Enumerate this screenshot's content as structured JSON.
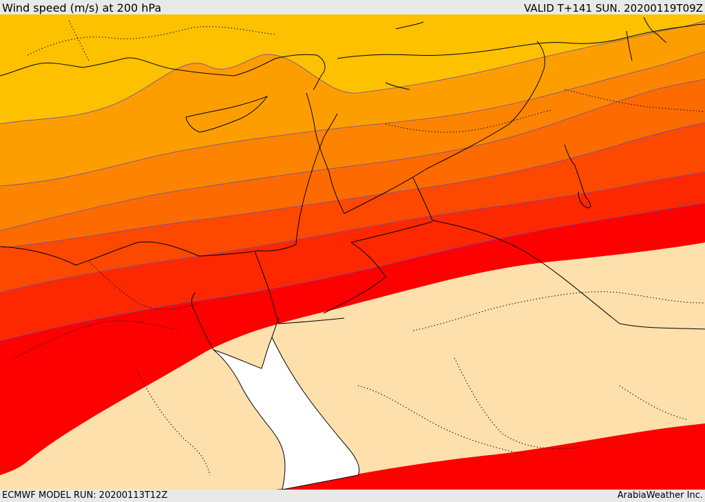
{
  "header": {
    "title": "Wind speed (m/s) at 200 hPa",
    "valid": "VALID T+141 SUN. 20200119T09Z"
  },
  "footer": {
    "model_run": "ECMWF MODEL RUN: 20200113T12Z",
    "credit": "ArabiaWeather Inc."
  },
  "map": {
    "field": "wind speed at 200 hPa",
    "colors": {
      "band_1": "#fdc100",
      "band_2": "#fd9e00",
      "band_3": "#fd8400",
      "band_4": "#fd6b00",
      "band_5": "#fd4800",
      "band_6": "#fd2800",
      "band_7": "#fd0000",
      "calm": "#fde0ac",
      "sea": "#ffffff",
      "contour_line": "#6a4fa3",
      "border_line": "#000000"
    }
  }
}
